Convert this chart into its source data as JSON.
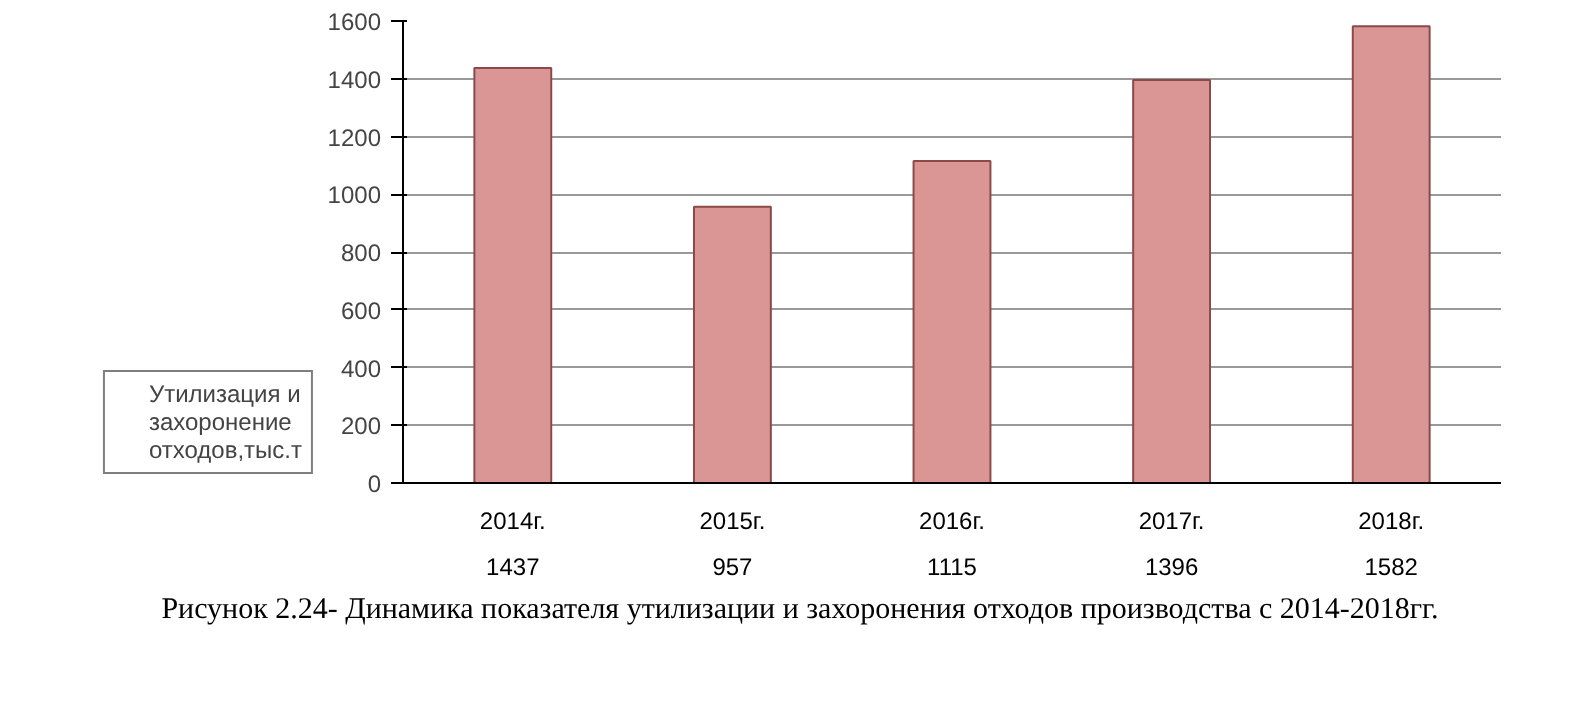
{
  "chart_data": {
    "type": "bar",
    "categories": [
      "2014г.",
      "2015г.",
      "2016г.",
      "2017г.",
      "2018г."
    ],
    "series": [
      {
        "name": "Утилизация и захоронение отходов,тыс.т",
        "color": "#d99694",
        "values": [
          1437,
          957,
          1115,
          1396,
          1582
        ]
      }
    ],
    "ylim": [
      0,
      1600
    ],
    "yticks": [
      0,
      200,
      400,
      600,
      800,
      1000,
      1200,
      1400,
      1600
    ],
    "grid": "y",
    "data_labels": true,
    "annotations": [
      "Рисунок 2.24- Динамика показателя утилизации и захоронения отходов производства с 2014-2018гг."
    ]
  }
}
